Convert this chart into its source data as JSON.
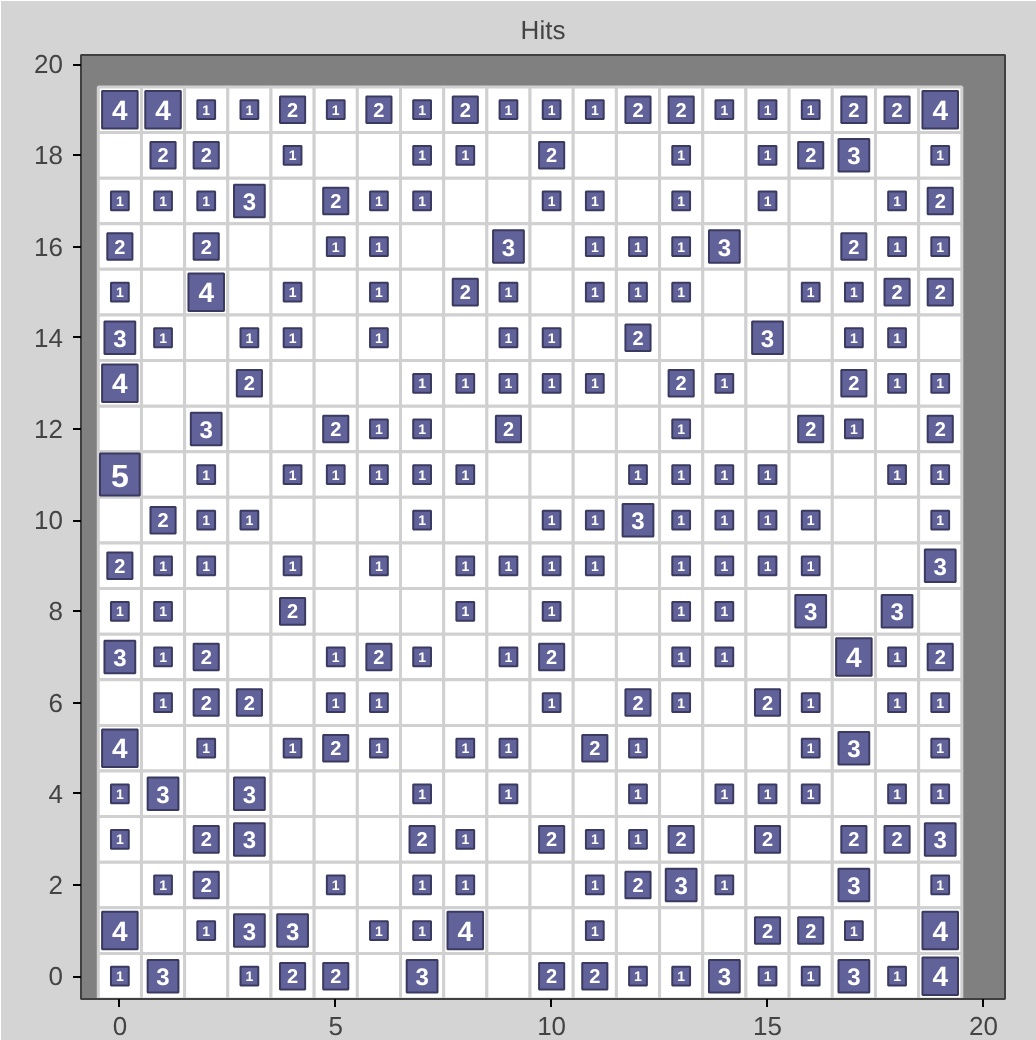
{
  "chart_data": {
    "type": "heatmap",
    "title": "Hits",
    "x": [
      0,
      1,
      2,
      3,
      4,
      5,
      6,
      7,
      8,
      9,
      10,
      11,
      12,
      13,
      14,
      15,
      16,
      17,
      18,
      19
    ],
    "y": [
      19,
      18,
      17,
      16,
      15,
      14,
      13,
      12,
      11,
      10,
      9,
      8,
      7,
      6,
      5,
      4,
      3,
      2,
      1,
      0
    ],
    "cells": [
      [
        4,
        4,
        1,
        1,
        2,
        1,
        2,
        1,
        2,
        1,
        1,
        1,
        2,
        2,
        1,
        1,
        1,
        2,
        2,
        4
      ],
      [
        null,
        2,
        2,
        null,
        1,
        null,
        null,
        1,
        1,
        null,
        2,
        null,
        null,
        1,
        null,
        1,
        2,
        3,
        null,
        1
      ],
      [
        1,
        1,
        1,
        3,
        null,
        2,
        1,
        1,
        null,
        null,
        1,
        1,
        null,
        1,
        null,
        1,
        null,
        null,
        1,
        2
      ],
      [
        2,
        null,
        2,
        null,
        null,
        1,
        1,
        null,
        null,
        3,
        null,
        1,
        1,
        1,
        3,
        null,
        null,
        2,
        1,
        1
      ],
      [
        1,
        null,
        4,
        null,
        1,
        null,
        1,
        null,
        2,
        1,
        null,
        1,
        1,
        1,
        null,
        null,
        1,
        1,
        2,
        2
      ],
      [
        3,
        1,
        null,
        1,
        1,
        null,
        1,
        null,
        null,
        1,
        1,
        null,
        2,
        null,
        null,
        3,
        null,
        1,
        1,
        null
      ],
      [
        4,
        null,
        null,
        2,
        null,
        null,
        null,
        1,
        1,
        1,
        1,
        1,
        null,
        2,
        1,
        null,
        null,
        2,
        1,
        1
      ],
      [
        null,
        null,
        3,
        null,
        null,
        2,
        1,
        1,
        null,
        2,
        null,
        null,
        null,
        1,
        null,
        null,
        2,
        1,
        null,
        2
      ],
      [
        5,
        null,
        1,
        null,
        1,
        1,
        1,
        1,
        1,
        null,
        null,
        null,
        1,
        1,
        1,
        1,
        null,
        null,
        1,
        1
      ],
      [
        null,
        2,
        1,
        1,
        null,
        null,
        null,
        1,
        null,
        null,
        1,
        1,
        3,
        1,
        1,
        1,
        1,
        null,
        null,
        1
      ],
      [
        2,
        1,
        1,
        null,
        1,
        null,
        1,
        null,
        1,
        1,
        1,
        1,
        null,
        1,
        1,
        1,
        1,
        null,
        null,
        3
      ],
      [
        1,
        1,
        null,
        null,
        2,
        null,
        null,
        null,
        1,
        null,
        1,
        null,
        null,
        1,
        1,
        null,
        3,
        null,
        3,
        null
      ],
      [
        3,
        1,
        2,
        null,
        null,
        1,
        2,
        1,
        null,
        1,
        2,
        null,
        null,
        1,
        1,
        null,
        null,
        4,
        1,
        2
      ],
      [
        null,
        1,
        2,
        2,
        null,
        1,
        1,
        null,
        null,
        null,
        1,
        null,
        2,
        1,
        null,
        2,
        1,
        null,
        1,
        1
      ],
      [
        4,
        null,
        1,
        null,
        1,
        2,
        1,
        null,
        1,
        1,
        null,
        2,
        1,
        null,
        null,
        null,
        1,
        3,
        null,
        1
      ],
      [
        1,
        3,
        null,
        3,
        null,
        null,
        null,
        1,
        null,
        1,
        null,
        null,
        1,
        null,
        1,
        1,
        1,
        null,
        1,
        1
      ],
      [
        1,
        null,
        2,
        3,
        null,
        null,
        null,
        2,
        1,
        null,
        2,
        1,
        1,
        2,
        null,
        2,
        null,
        2,
        2,
        3
      ],
      [
        null,
        1,
        2,
        null,
        null,
        1,
        null,
        1,
        1,
        null,
        null,
        1,
        2,
        3,
        1,
        null,
        null,
        3,
        null,
        1
      ],
      [
        4,
        null,
        1,
        3,
        3,
        null,
        1,
        1,
        4,
        null,
        null,
        1,
        null,
        null,
        null,
        2,
        2,
        1,
        null,
        4
      ],
      [
        1,
        3,
        null,
        1,
        2,
        2,
        null,
        3,
        null,
        null,
        2,
        2,
        1,
        1,
        3,
        1,
        1,
        3,
        1,
        4
      ]
    ],
    "color": "#62629a",
    "xlim": [
      -0.9,
      20.5
    ],
    "ylim": [
      -0.5,
      20.2
    ],
    "xticks": [
      0,
      5,
      10,
      15,
      20
    ],
    "yticks": [
      0,
      2,
      4,
      6,
      8,
      10,
      12,
      14,
      16,
      18,
      20
    ],
    "data_labels": true
  }
}
